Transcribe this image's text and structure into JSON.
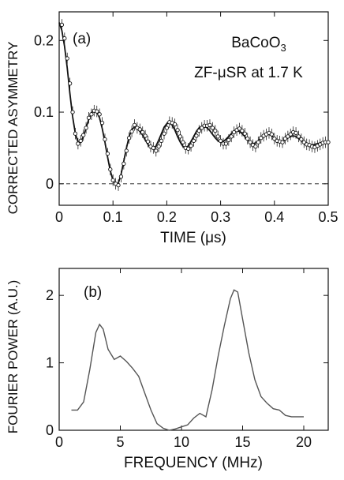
{
  "chart_data": [
    {
      "panel_label": "(a)",
      "type": "scatter",
      "ylabel": "CORRECTED ASYMMETRY",
      "xlabel": "TIME (μs)",
      "xlim": [
        0,
        0.5
      ],
      "ylim": [
        -0.03,
        0.24
      ],
      "x_ticks": [
        0,
        0.1,
        0.2,
        0.3,
        0.4,
        0.5
      ],
      "x_tick_labels": [
        "0",
        "0.1",
        "0.2",
        "0.3",
        "0.4",
        "0.5"
      ],
      "y_ticks": [
        0,
        0.1,
        0.2
      ],
      "y_tick_labels": [
        "0",
        "0.1",
        "0.2"
      ],
      "annotations": {
        "compound": "BaCoO",
        "compound_sub": "3",
        "condition": "ZF-μSR at 1.7 K"
      },
      "zero_reference_line": 0,
      "series": [
        {
          "style": "markers-with-error-bars",
          "error": 0.008,
          "x": [
            0.005,
            0.01,
            0.015,
            0.02,
            0.025,
            0.03,
            0.035,
            0.04,
            0.045,
            0.05,
            0.055,
            0.06,
            0.065,
            0.07,
            0.075,
            0.08,
            0.085,
            0.09,
            0.095,
            0.1,
            0.105,
            0.11,
            0.115,
            0.12,
            0.125,
            0.13,
            0.135,
            0.14,
            0.145,
            0.15,
            0.155,
            0.16,
            0.165,
            0.17,
            0.175,
            0.18,
            0.185,
            0.19,
            0.195,
            0.2,
            0.205,
            0.21,
            0.215,
            0.22,
            0.225,
            0.23,
            0.235,
            0.24,
            0.245,
            0.25,
            0.255,
            0.26,
            0.265,
            0.27,
            0.275,
            0.28,
            0.285,
            0.29,
            0.295,
            0.3,
            0.305,
            0.31,
            0.315,
            0.32,
            0.325,
            0.33,
            0.335,
            0.34,
            0.345,
            0.35,
            0.355,
            0.36,
            0.365,
            0.37,
            0.375,
            0.38,
            0.385,
            0.39,
            0.395,
            0.4,
            0.405,
            0.41,
            0.415,
            0.42,
            0.425,
            0.43,
            0.435,
            0.44,
            0.445,
            0.45,
            0.455,
            0.46,
            0.465,
            0.47,
            0.475,
            0.48,
            0.485,
            0.49,
            0.495,
            0.5
          ],
          "y": [
            0.222,
            0.203,
            0.175,
            0.14,
            0.1,
            0.07,
            0.056,
            0.06,
            0.068,
            0.078,
            0.092,
            0.097,
            0.102,
            0.101,
            0.097,
            0.085,
            0.062,
            0.042,
            0.02,
            0.005,
            0.0,
            -0.002,
            0.01,
            0.028,
            0.046,
            0.064,
            0.073,
            0.082,
            0.078,
            0.076,
            0.072,
            0.067,
            0.059,
            0.052,
            0.05,
            0.046,
            0.052,
            0.06,
            0.07,
            0.078,
            0.086,
            0.085,
            0.083,
            0.075,
            0.066,
            0.058,
            0.05,
            0.049,
            0.053,
            0.06,
            0.067,
            0.074,
            0.078,
            0.081,
            0.081,
            0.082,
            0.078,
            0.074,
            0.066,
            0.06,
            0.056,
            0.056,
            0.061,
            0.066,
            0.072,
            0.075,
            0.077,
            0.074,
            0.07,
            0.063,
            0.058,
            0.054,
            0.052,
            0.058,
            0.064,
            0.067,
            0.069,
            0.071,
            0.069,
            0.063,
            0.06,
            0.059,
            0.058,
            0.063,
            0.066,
            0.069,
            0.072,
            0.071,
            0.066,
            0.062,
            0.058,
            0.055,
            0.054,
            0.052,
            0.051,
            0.053,
            0.055,
            0.057,
            0.058,
            0.058
          ]
        },
        {
          "style": "fit-line",
          "x": [
            0.0,
            0.005,
            0.01,
            0.015,
            0.02,
            0.025,
            0.03,
            0.035,
            0.04,
            0.045,
            0.05,
            0.055,
            0.06,
            0.065,
            0.07,
            0.075,
            0.08,
            0.085,
            0.09,
            0.095,
            0.1,
            0.105,
            0.11,
            0.115,
            0.12,
            0.125,
            0.13,
            0.135,
            0.14,
            0.145,
            0.15,
            0.155,
            0.16,
            0.165,
            0.17,
            0.175,
            0.18,
            0.185,
            0.19,
            0.195,
            0.2,
            0.205,
            0.21,
            0.215,
            0.22,
            0.225,
            0.23,
            0.235,
            0.24,
            0.245,
            0.25,
            0.255,
            0.26,
            0.265,
            0.27,
            0.275,
            0.28,
            0.285,
            0.29,
            0.295,
            0.3,
            0.305,
            0.31,
            0.315,
            0.32,
            0.325,
            0.33,
            0.335,
            0.34,
            0.345,
            0.35,
            0.355,
            0.36,
            0.365,
            0.37,
            0.375,
            0.38,
            0.385,
            0.39,
            0.395,
            0.4,
            0.405,
            0.41,
            0.415,
            0.42,
            0.425,
            0.43,
            0.435,
            0.44,
            0.445,
            0.45,
            0.455,
            0.46,
            0.465,
            0.47,
            0.475,
            0.48,
            0.485,
            0.49,
            0.495,
            0.5
          ],
          "y": [
            0.225,
            0.214,
            0.192,
            0.162,
            0.126,
            0.094,
            0.07,
            0.058,
            0.058,
            0.066,
            0.078,
            0.09,
            0.099,
            0.102,
            0.1,
            0.092,
            0.077,
            0.058,
            0.037,
            0.018,
            0.005,
            -0.001,
            0.001,
            0.013,
            0.031,
            0.05,
            0.066,
            0.076,
            0.079,
            0.077,
            0.073,
            0.068,
            0.061,
            0.055,
            0.05,
            0.049,
            0.053,
            0.061,
            0.07,
            0.079,
            0.084,
            0.085,
            0.082,
            0.075,
            0.066,
            0.058,
            0.052,
            0.05,
            0.053,
            0.059,
            0.066,
            0.073,
            0.078,
            0.08,
            0.08,
            0.078,
            0.074,
            0.069,
            0.064,
            0.06,
            0.058,
            0.059,
            0.062,
            0.066,
            0.07,
            0.073,
            0.074,
            0.073,
            0.07,
            0.066,
            0.061,
            0.058,
            0.056,
            0.057,
            0.06,
            0.064,
            0.067,
            0.069,
            0.069,
            0.067,
            0.064,
            0.061,
            0.059,
            0.059,
            0.061,
            0.064,
            0.066,
            0.067,
            0.066,
            0.063,
            0.06,
            0.057,
            0.055,
            0.054,
            0.054,
            0.055,
            0.056,
            0.057,
            0.058,
            0.058,
            0.057
          ]
        }
      ]
    },
    {
      "panel_label": "(b)",
      "type": "line",
      "ylabel": "FOURIER POWER (A.U.)",
      "xlabel": "FREQUENCY (MHz)",
      "xlim": [
        0,
        22
      ],
      "ylim": [
        0,
        2.4
      ],
      "x_ticks": [
        0,
        5,
        10,
        15,
        20
      ],
      "x_tick_labels": [
        "0",
        "5",
        "10",
        "15",
        "20"
      ],
      "y_ticks": [
        0,
        1,
        2
      ],
      "y_tick_labels": [
        "0",
        "1",
        "2"
      ],
      "series": [
        {
          "x": [
            1.0,
            1.5,
            2.0,
            2.5,
            3.0,
            3.3,
            3.6,
            4.0,
            4.5,
            5.0,
            5.5,
            6.0,
            6.5,
            7.0,
            7.5,
            8.0,
            8.5,
            9.0,
            9.5,
            10.0,
            10.5,
            11.0,
            11.5,
            12.0,
            12.5,
            13.0,
            13.5,
            14.0,
            14.3,
            14.6,
            15.0,
            15.5,
            16.0,
            16.5,
            17.0,
            17.5,
            18.0,
            18.5,
            19.0,
            19.5,
            20.0
          ],
          "y": [
            0.3,
            0.3,
            0.42,
            0.9,
            1.45,
            1.57,
            1.5,
            1.2,
            1.05,
            1.1,
            1.02,
            0.92,
            0.8,
            0.55,
            0.3,
            0.1,
            0.03,
            0.0,
            0.02,
            0.05,
            0.08,
            0.18,
            0.25,
            0.2,
            0.6,
            1.1,
            1.55,
            1.95,
            2.08,
            2.05,
            1.65,
            1.15,
            0.75,
            0.5,
            0.4,
            0.32,
            0.3,
            0.22,
            0.2,
            0.2,
            0.2
          ]
        }
      ]
    }
  ]
}
